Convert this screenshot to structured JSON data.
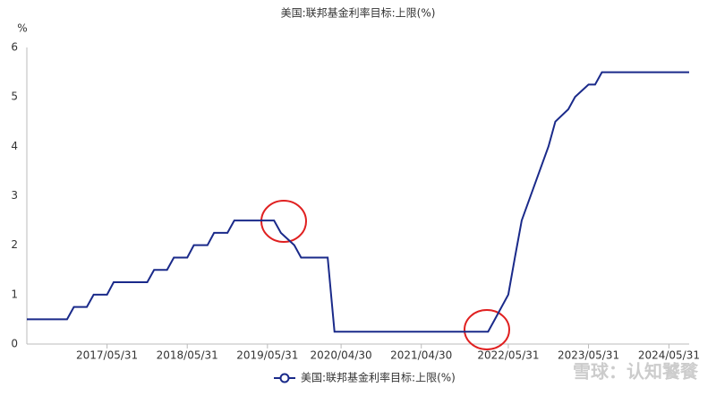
{
  "chart_data": {
    "type": "line",
    "title": "美国:联邦基金利率目标:上限(%)",
    "y_label": "%",
    "watermark": "雪球：认知饕餮",
    "x": [
      "2016/05/31",
      "2016/11/30",
      "2016/12/31",
      "2017/02/28",
      "2017/03/31",
      "2017/05/31",
      "2017/06/30",
      "2017/11/30",
      "2017/12/31",
      "2018/02/28",
      "2018/03/31",
      "2018/05/31",
      "2018/06/30",
      "2018/08/31",
      "2018/09/30",
      "2018/11/30",
      "2018/12/31",
      "2019/06/30",
      "2019/07/31",
      "2019/09/30",
      "2019/10/31",
      "2020/02/29",
      "2020/03/31",
      "2022/02/28",
      "2022/03/31",
      "2022/05/31",
      "2022/06/30",
      "2022/07/31",
      "2022/09/30",
      "2022/11/30",
      "2022/12/31",
      "2023/02/28",
      "2023/03/31",
      "2023/05/31",
      "2023/06/30",
      "2023/07/31",
      "2024/08/31"
    ],
    "series": [
      {
        "name": "美国:联邦基金利率目标:上限(%)",
        "color": "#1a2a8a",
        "values": [
          0.5,
          0.5,
          0.75,
          0.75,
          1.0,
          1.0,
          1.25,
          1.25,
          1.5,
          1.5,
          1.75,
          1.75,
          2.0,
          2.0,
          2.25,
          2.25,
          2.5,
          2.5,
          2.25,
          2.0,
          1.75,
          1.75,
          0.25,
          0.25,
          0.5,
          1.0,
          1.75,
          2.5,
          3.25,
          4.0,
          4.5,
          4.75,
          5.0,
          5.25,
          5.25,
          5.5,
          5.5
        ]
      }
    ],
    "xlim": [
      "2016/05/31",
      "2024/08/31"
    ],
    "xticks": [
      "2017/05/31",
      "2018/05/31",
      "2019/05/31",
      "2020/04/30",
      "2021/04/30",
      "2022/05/31",
      "2023/05/31",
      "2024/05/31"
    ],
    "ylim": [
      0,
      6
    ],
    "yticks": [
      0,
      1,
      2,
      3,
      4,
      5,
      6
    ],
    "grid": false
  }
}
